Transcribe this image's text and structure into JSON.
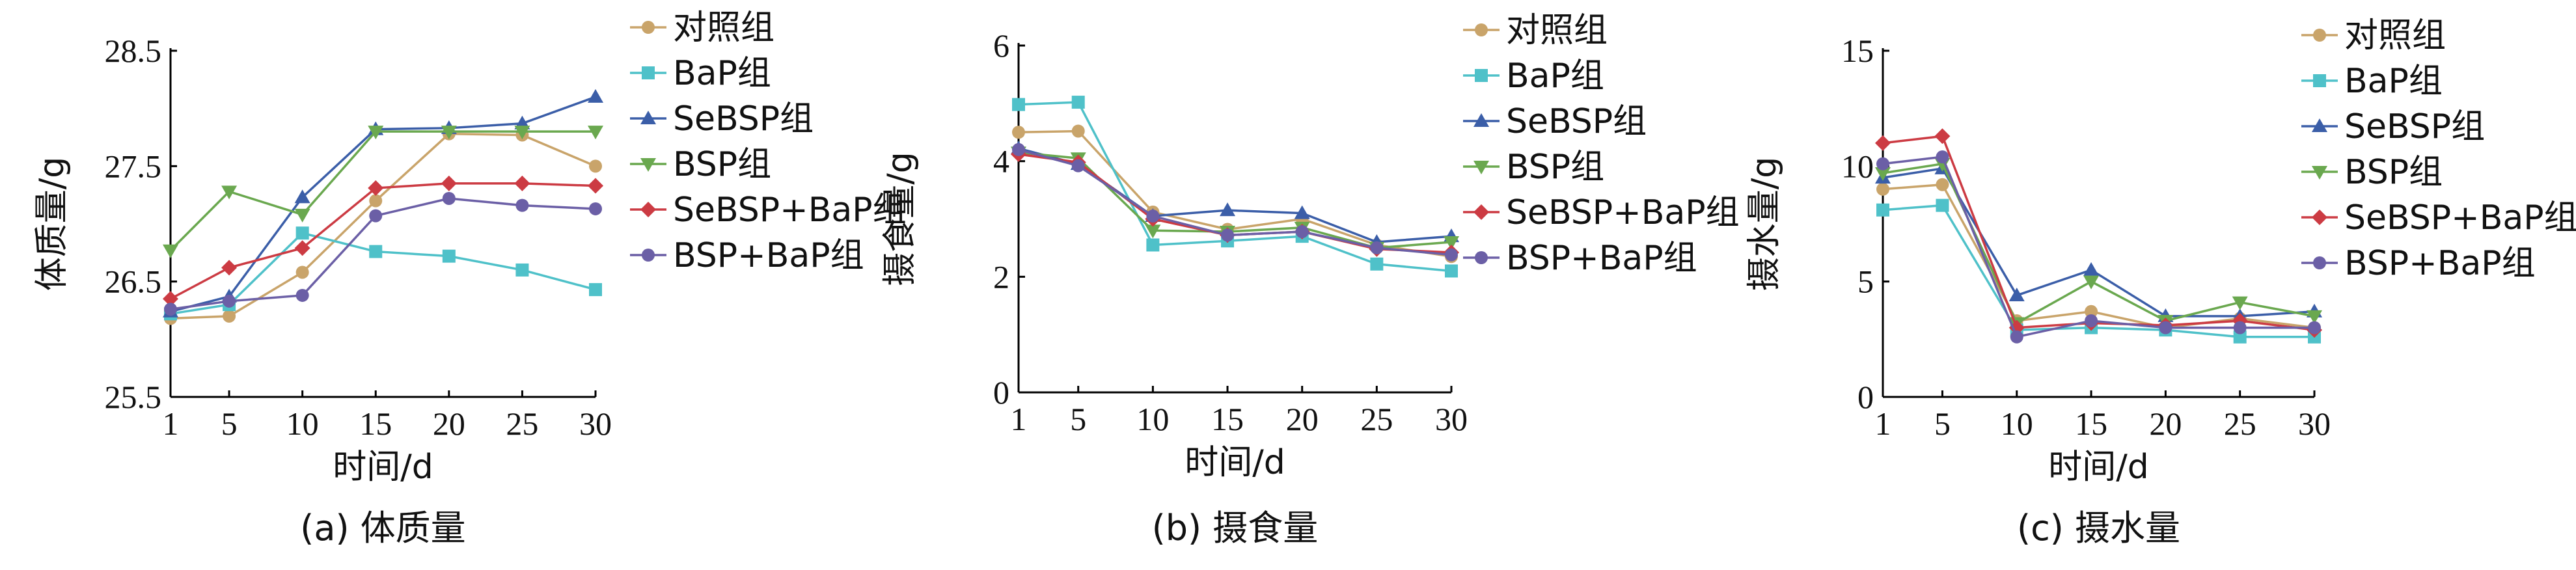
{
  "chart_data": [
    {
      "type": "line",
      "caption": "(a) 体质量",
      "xlabel": "时间/d",
      "ylabel": "体质量/g",
      "x": [
        1,
        5,
        10,
        15,
        20,
        25,
        30
      ],
      "xticks": [
        "1",
        "5",
        "10",
        "15",
        "20",
        "25",
        "30"
      ],
      "ylim": [
        25.5,
        28.5
      ],
      "yticks": [
        "25.5",
        "26.5",
        "27.5",
        "28.5"
      ],
      "legend_position": "right",
      "series": [
        {
          "name": "对照组",
          "values": [
            26.18,
            26.2,
            26.58,
            27.2,
            27.78,
            27.77,
            27.5
          ]
        },
        {
          "name": "BaP组",
          "values": [
            26.22,
            26.3,
            26.92,
            26.76,
            26.72,
            26.6,
            26.43
          ]
        },
        {
          "name": "SeBSP组",
          "values": [
            26.24,
            26.37,
            27.23,
            27.82,
            27.83,
            27.87,
            28.1
          ]
        },
        {
          "name": "BSP组",
          "values": [
            26.77,
            27.28,
            27.08,
            27.8,
            27.8,
            27.8,
            27.8
          ]
        },
        {
          "name": "SeBSP+BaP组",
          "values": [
            26.35,
            26.62,
            26.79,
            27.31,
            27.35,
            27.35,
            27.33
          ]
        },
        {
          "name": "BSP+BaP组",
          "values": [
            26.26,
            26.33,
            26.38,
            27.07,
            27.22,
            27.16,
            27.13
          ]
        }
      ]
    },
    {
      "type": "line",
      "caption": "(b) 摄食量",
      "xlabel": "时间/d",
      "ylabel": "摄食量/g",
      "x": [
        1,
        5,
        10,
        15,
        20,
        25,
        30
      ],
      "xticks": [
        "1",
        "5",
        "10",
        "15",
        "20",
        "25",
        "30"
      ],
      "ylim": [
        0,
        6
      ],
      "yticks": [
        "0",
        "2",
        "4",
        "6"
      ],
      "legend_position": "right",
      "series": [
        {
          "name": "对照组",
          "values": [
            4.5,
            4.52,
            3.12,
            2.82,
            3.0,
            2.55,
            2.35
          ]
        },
        {
          "name": "BaP组",
          "values": [
            4.98,
            5.02,
            2.55,
            2.62,
            2.7,
            2.22,
            2.1
          ]
        },
        {
          "name": "SeBSP组",
          "values": [
            4.22,
            3.95,
            3.05,
            3.15,
            3.1,
            2.6,
            2.7
          ]
        },
        {
          "name": "BSP组",
          "values": [
            4.15,
            4.05,
            2.8,
            2.78,
            2.85,
            2.5,
            2.6
          ]
        },
        {
          "name": "SeBSP+BaP组",
          "values": [
            4.12,
            3.98,
            3.0,
            2.72,
            2.78,
            2.48,
            2.42
          ]
        },
        {
          "name": "BSP+BaP组",
          "values": [
            4.2,
            3.92,
            3.05,
            2.72,
            2.78,
            2.5,
            2.38
          ]
        }
      ]
    },
    {
      "type": "line",
      "caption": "(c) 摄水量",
      "xlabel": "时间/d",
      "ylabel": "摄水量/g",
      "x": [
        1,
        5,
        10,
        15,
        20,
        25,
        30
      ],
      "xticks": [
        "1",
        "5",
        "10",
        "15",
        "20",
        "25",
        "30"
      ],
      "ylim": [
        0,
        15
      ],
      "yticks": [
        "0",
        "5",
        "10",
        "15"
      ],
      "legend_position": "right",
      "series": [
        {
          "name": "对照组",
          "values": [
            9.0,
            9.2,
            3.3,
            3.7,
            3.0,
            3.4,
            3.0
          ]
        },
        {
          "name": "BaP组",
          "values": [
            8.1,
            8.3,
            2.9,
            3.0,
            2.9,
            2.6,
            2.6
          ]
        },
        {
          "name": "SeBSP组",
          "values": [
            9.5,
            9.9,
            4.4,
            5.5,
            3.5,
            3.5,
            3.7
          ]
        },
        {
          "name": "BSP组",
          "values": [
            9.7,
            10.1,
            3.2,
            5.0,
            3.3,
            4.1,
            3.5
          ]
        },
        {
          "name": "SeBSP+BaP组",
          "values": [
            11.0,
            11.3,
            3.0,
            3.2,
            3.1,
            3.3,
            2.9
          ]
        },
        {
          "name": "BSP+BaP组",
          "values": [
            10.1,
            10.4,
            2.6,
            3.3,
            3.0,
            3.0,
            3.0
          ]
        }
      ]
    }
  ],
  "styles": {
    "series_colors": [
      "#c9a46a",
      "#4fc1c9",
      "#3b5ea8",
      "#6aa84f",
      "#cc3b43",
      "#6b5fa6"
    ],
    "series_markers": [
      "circle",
      "square",
      "triangle-up",
      "triangle-down",
      "diamond",
      "circle"
    ]
  }
}
